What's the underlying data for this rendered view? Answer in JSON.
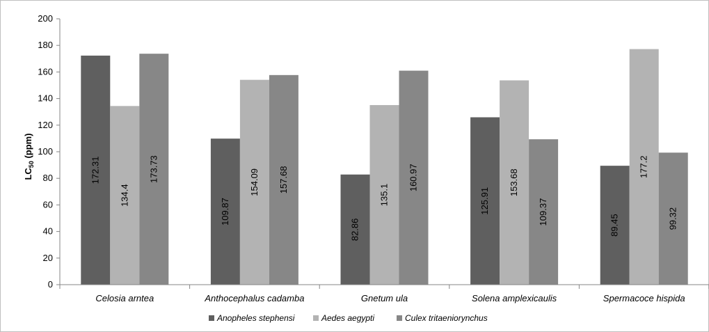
{
  "chart_data": {
    "type": "bar",
    "title": "",
    "xlabel": "",
    "ylabel_main": "LC",
    "ylabel_sub": "50",
    "ylabel_unit": " (ppm)",
    "ylim": [
      0,
      200
    ],
    "yticks": [
      0,
      20,
      40,
      60,
      80,
      100,
      120,
      140,
      160,
      180,
      200
    ],
    "grid": false,
    "legend_position": "bottom",
    "categories": [
      "Celosia arntea",
      "Anthocephalus cadamba",
      "Gnetum ula",
      "Solena amplexicaulis",
      "Spermacoce hispida"
    ],
    "series": [
      {
        "name": "Anopheles stephensi",
        "color": "#5f5f5f",
        "values": [
          172.31,
          109.87,
          82.86,
          125.91,
          89.45
        ],
        "labels": [
          "172.31",
          "109.87",
          "82.86",
          "125.91",
          "89.45"
        ]
      },
      {
        "name": "Aedes aegypti",
        "color": "#b3b3b3",
        "values": [
          134.4,
          154.09,
          135.1,
          153.68,
          177.2
        ],
        "labels": [
          "134.4",
          "154.09",
          "135.1",
          "153.68",
          "177.2"
        ]
      },
      {
        "name": "Culex tritaeniorynchus",
        "color": "#878787",
        "values": [
          173.73,
          157.68,
          160.97,
          109.37,
          99.32
        ],
        "labels": [
          "173.73",
          "157.68",
          "160.97",
          "109.37",
          "99.32"
        ]
      }
    ]
  }
}
